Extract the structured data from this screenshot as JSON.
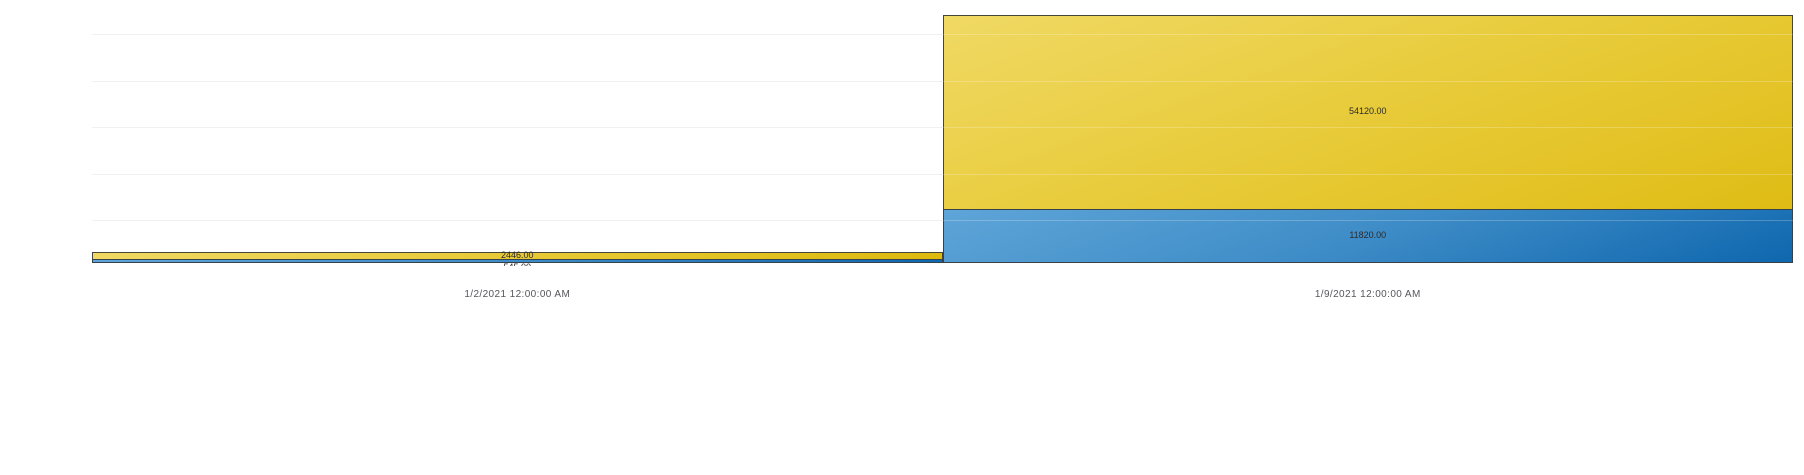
{
  "chart_data": {
    "type": "bar",
    "variant": "overlapping-full-width-columns",
    "title": "",
    "xlabel": "",
    "ylabel": "",
    "categories": [
      "1/2/2021 12:00:00 AM",
      "1/9/2021 12:00:00 AM"
    ],
    "series": [
      {
        "name": "yellow-series",
        "color": "#e8cb3a",
        "values": [
          2446,
          54120
        ],
        "data_labels": [
          "2446.00",
          "54120.00"
        ]
      },
      {
        "name": "blue-series",
        "color": "#3e8cc7",
        "values": [
          545,
          11820
        ],
        "data_labels": [
          "545.00",
          "11820.00"
        ]
      }
    ],
    "value_axis": {
      "min": 0,
      "max": 57000,
      "gridline_interval": 10000,
      "tick_labels_visible": false
    },
    "grid": true,
    "legend_position": "none",
    "data_labels_visible": true,
    "notes": "Blue series is drawn in front of yellow series from baseline 0; blue data label of first category is clipped at the plot bottom edge."
  },
  "colors": {
    "background": "#ffffff",
    "gridline": "#ececec",
    "bar_border": "#45453a",
    "yellow_top": "#f0d964",
    "yellow_bottom": "#ddb90d",
    "blue_top": "#5ea5d8",
    "blue_bottom": "#0f67ae",
    "value_label_text": "#2b2b2b",
    "axis_label_text": "#55565c"
  }
}
